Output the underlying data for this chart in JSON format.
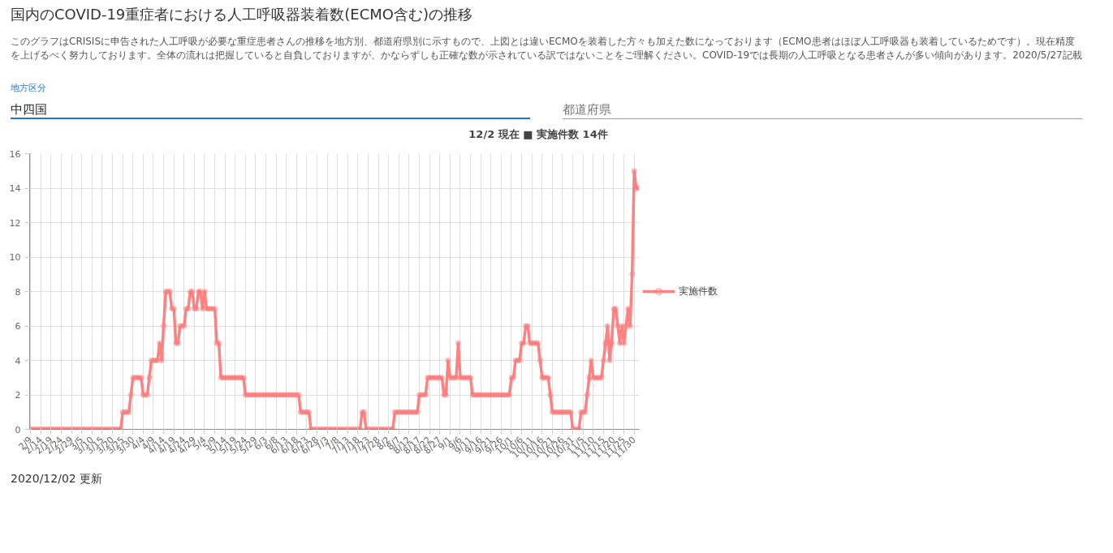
{
  "chart_data": {
    "type": "line",
    "title": "国内のCOVID-19重症者における人工呼吸器装着数(ECMO含む)の推移",
    "subtitle": "このグラフはCRISISに申告された人工呼吸が必要な重症患者さんの推移を地方別、都道府県別に示すもので、上図とは違いECMOを装着した方々も加えた数になっております（ECMO患者はほぼ人工呼吸器も装着しているためです）。現在精度を上げるべく努力しております。全体の流れは把握していると自負しておりますが、かならずしも正確な数が示されている訳ではないことをご理解ください。COVID-19では長期の人工呼吸となる患者さんが多い傾向があります。2020/5/27記載",
    "annotations": [
      "地方区分",
      "中四国",
      "都道府県",
      "12/2 現在 ■ 実施件数 14件",
      "2020/12/02 更新"
    ],
    "categories": [
      "2/9",
      null,
      null,
      null,
      null,
      "2/14",
      null,
      null,
      null,
      null,
      "2/19",
      null,
      null,
      null,
      null,
      "2/24",
      null,
      null,
      null,
      null,
      "2/29",
      null,
      null,
      null,
      null,
      "3/5",
      null,
      null,
      null,
      null,
      "3/10",
      null,
      null,
      null,
      null,
      "3/15",
      null,
      null,
      null,
      null,
      "3/20",
      null,
      null,
      null,
      null,
      "3/25",
      null,
      null,
      null,
      null,
      "3/30",
      null,
      null,
      null,
      null,
      "4/4",
      null,
      null,
      null,
      null,
      "4/9",
      null,
      null,
      null,
      null,
      "4/14",
      null,
      null,
      null,
      null,
      "4/19",
      null,
      null,
      null,
      null,
      "4/24",
      null,
      null,
      null,
      null,
      "4/29",
      null,
      null,
      null,
      null,
      "5/4",
      null,
      null,
      null,
      null,
      "5/9",
      null,
      null,
      null,
      null,
      "5/14",
      null,
      null,
      null,
      null,
      "5/19",
      null,
      null,
      null,
      null,
      "5/24",
      null,
      null,
      null,
      null,
      "5/29",
      null,
      null,
      null,
      null,
      "6/3",
      null,
      null,
      null,
      null,
      "6/8",
      null,
      null,
      null,
      null,
      "6/13",
      null,
      null,
      null,
      null,
      "6/18",
      null,
      null,
      null,
      null,
      "6/23",
      null,
      null,
      null,
      null,
      "6/28",
      null,
      null,
      null,
      null,
      "7/3",
      null,
      null,
      null,
      null,
      "7/8",
      null,
      null,
      null,
      null,
      "7/13",
      null,
      null,
      null,
      null,
      "7/18",
      null,
      null,
      null,
      null,
      "7/23",
      null,
      null,
      null,
      null,
      "7/28",
      null,
      null,
      null,
      null,
      "8/2",
      null,
      null,
      null,
      null,
      "8/7",
      null,
      null,
      null,
      null,
      "8/12",
      null,
      null,
      null,
      null,
      "8/17",
      null,
      null,
      null,
      null,
      "8/22",
      null,
      null,
      null,
      null,
      "8/27",
      null,
      null,
      null,
      null,
      "9/1",
      null,
      null,
      null,
      null,
      "9/6",
      null,
      null,
      null,
      null,
      "9/11",
      null,
      null,
      null,
      null,
      "9/16",
      null,
      null,
      null,
      null,
      "9/21",
      null,
      null,
      null,
      null,
      "9/26",
      null,
      null,
      null,
      null,
      "10/1",
      null,
      null,
      null,
      null,
      "10/6",
      null,
      null,
      null,
      null,
      "10/11",
      null,
      null,
      null,
      null,
      "10/16",
      null,
      null,
      null,
      null,
      "10/21",
      null,
      null,
      null,
      null,
      "10/26",
      null,
      null,
      null,
      null,
      "10/31",
      null,
      null,
      null,
      null,
      "11/5",
      null,
      null,
      null,
      null,
      "11/10",
      null,
      null,
      null,
      null,
      "11/15",
      null,
      null,
      null,
      null,
      "11/20",
      null,
      null,
      null,
      null,
      "11/25",
      null,
      null,
      null,
      null,
      "11/30",
      null,
      null
    ],
    "series": [
      {
        "name": "実施件数",
        "color": "#ff7b7b",
        "values": [
          0,
          0,
          0,
          0,
          0,
          0,
          0,
          0,
          0,
          0,
          0,
          0,
          0,
          0,
          0,
          0,
          0,
          0,
          0,
          0,
          0,
          0,
          0,
          0,
          0,
          0,
          0,
          0,
          0,
          0,
          0,
          0,
          0,
          0,
          0,
          0,
          0,
          0,
          0,
          0,
          0,
          0,
          0,
          0,
          0,
          1,
          1,
          1,
          1,
          2,
          3,
          3,
          3,
          3,
          3,
          2,
          2,
          2,
          3,
          4,
          4,
          4,
          4,
          5,
          4,
          6,
          8,
          8,
          8,
          7,
          7,
          5,
          5,
          6,
          6,
          6,
          7,
          7,
          8,
          8,
          7,
          7,
          8,
          8,
          7,
          8,
          7,
          7,
          7,
          7,
          7,
          5,
          5,
          3,
          3,
          3,
          3,
          3,
          3,
          3,
          3,
          3,
          3,
          3,
          3,
          2,
          2,
          2,
          2,
          2,
          2,
          2,
          2,
          2,
          2,
          2,
          2,
          2,
          2,
          2,
          2,
          2,
          2,
          2,
          2,
          2,
          2,
          2,
          2,
          2,
          2,
          2,
          1,
          1,
          1,
          1,
          1,
          0,
          0,
          0,
          0,
          0,
          0,
          0,
          0,
          0,
          0,
          0,
          0,
          0,
          0,
          0,
          0,
          0,
          0,
          0,
          0,
          0,
          0,
          0,
          0,
          0,
          1,
          1,
          0,
          0,
          0,
          0,
          0,
          0,
          0,
          0,
          0,
          0,
          0,
          0,
          0,
          0,
          1,
          1,
          1,
          1,
          1,
          1,
          1,
          1,
          1,
          1,
          1,
          1,
          2,
          2,
          2,
          2,
          3,
          3,
          3,
          3,
          3,
          3,
          3,
          3,
          2,
          2,
          4,
          3,
          3,
          3,
          3,
          5,
          3,
          3,
          3,
          3,
          3,
          3,
          2,
          2,
          2,
          2,
          2,
          2,
          2,
          2,
          2,
          2,
          2,
          2,
          2,
          2,
          2,
          2,
          2,
          2,
          2,
          3,
          3,
          4,
          4,
          4,
          5,
          5,
          6,
          6,
          5,
          5,
          5,
          5,
          5,
          4,
          3,
          3,
          3,
          3,
          2,
          1,
          1,
          1,
          1,
          1,
          1,
          1,
          1,
          1,
          1,
          0,
          0,
          0,
          0,
          1,
          1,
          1,
          2,
          3,
          4,
          3,
          3,
          3,
          3,
          3,
          4,
          5,
          6,
          4,
          5,
          7,
          7,
          6,
          5,
          6,
          5,
          6,
          7,
          6,
          9,
          15,
          14,
          14
        ]
      }
    ],
    "ylim": [
      0,
      16
    ],
    "yticks": [
      0,
      2,
      4,
      6,
      8,
      10,
      12,
      14,
      16
    ],
    "grid": true,
    "legend": "right",
    "marker": "circle"
  }
}
